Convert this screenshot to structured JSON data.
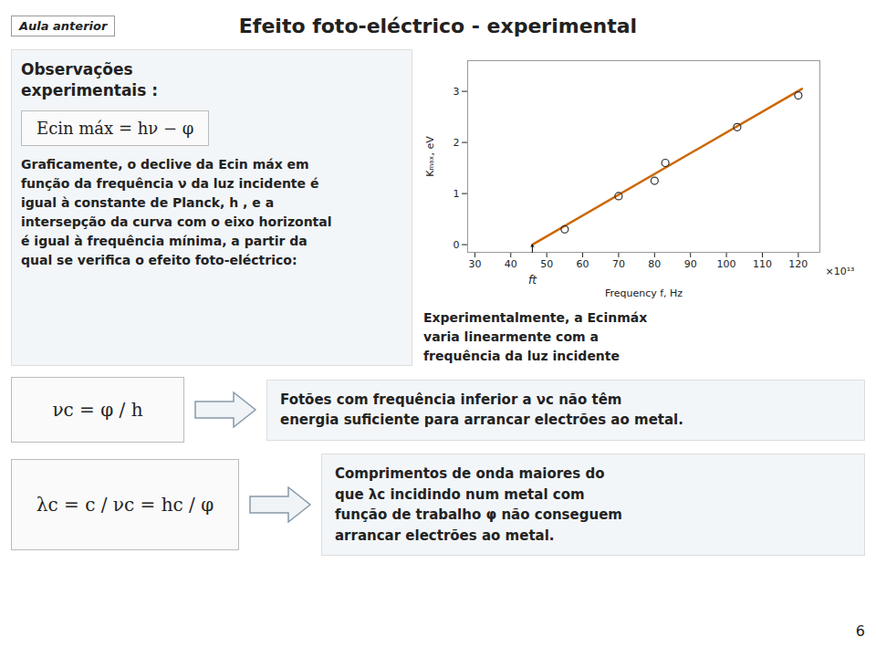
{
  "chart_data": {
    "type": "scatter",
    "title": "Efeito foto-eléctrico - experimental",
    "x_label": "Frequency f, Hz",
    "y_label": "Kₘₐₓ, eV",
    "series": [
      {
        "type": "scatter",
        "color": "#333333",
        "x": [
          55,
          70,
          80,
          83,
          103,
          120
        ],
        "values": [
          0.3,
          0.95,
          1.25,
          1.6,
          2.3,
          2.92
        ]
      },
      {
        "type": "line",
        "color": "#CC6600",
        "x": [
          46,
          121
        ],
        "values": [
          0.0,
          3.05
        ]
      }
    ],
    "xlim": [
      28,
      126
    ],
    "ylim": [
      -0.15,
      3.6
    ],
    "xticks": [
      30,
      40,
      50,
      60,
      70,
      80,
      90,
      100,
      110,
      120
    ],
    "yticks": [
      0,
      1,
      2,
      3
    ],
    "grid": false,
    "annotations": [
      {
        "text": "ft",
        "x": 46,
        "y": 0
      },
      {
        "text": "×10¹³"
      },
      {
        "text": "Aula anterior"
      },
      {
        "text": "Observações\nexperimentais :"
      },
      {
        "text": "Ecin máx = hν − φ"
      },
      {
        "text": "Graficamente, o declive da Ecin máx  em\nfunção da frequência ν da luz incidente é\nigual à constante de Planck, h , e a\nintersepção da curva com o eixo horizontal\né igual à frequência mínima, a partir da\nqual se verifica o efeito foto-eléctrico:"
      },
      {
        "text": "Experimentalmente, a Ecinmáx\nvaria linearmente com a\nfrequência da luz incidente"
      },
      {
        "text": "νc = φ / h"
      },
      {
        "text": "Fotões com frequência inferior a νc  não têm\nenergia suficiente para arrancar electrões ao metal."
      },
      {
        "text": "λc = c / νc = hc / φ"
      },
      {
        "text": "Comprimentos de onda maiores do\nque λc  incidindo num metal com\nfunção de trabalho φ  não conseguem\narrancar electrões ao metal."
      },
      {
        "text": "6"
      }
    ]
  }
}
